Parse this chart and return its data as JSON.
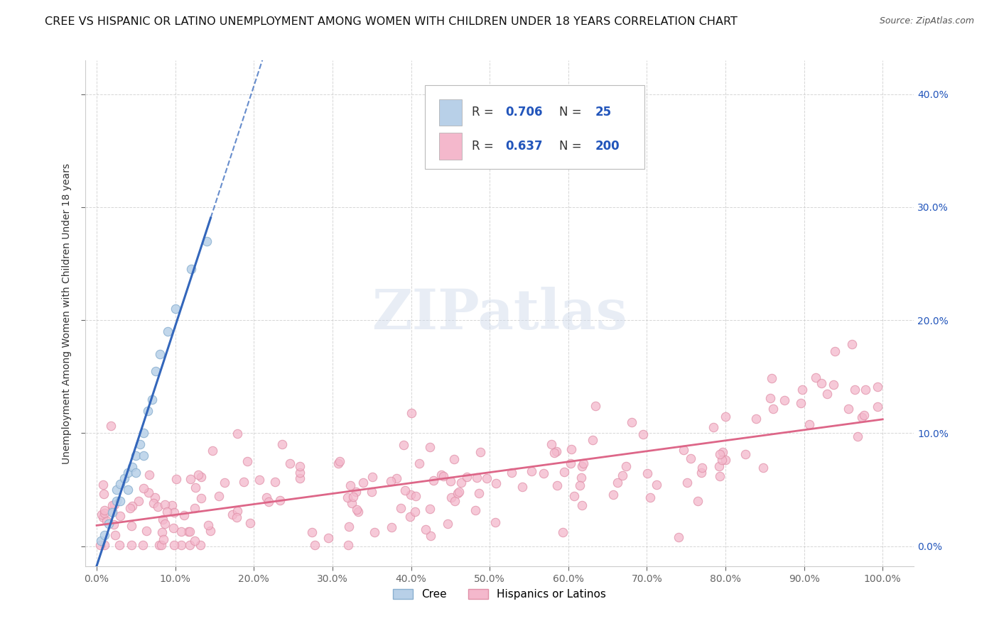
{
  "title": "CREE VS HISPANIC OR LATINO UNEMPLOYMENT AMONG WOMEN WITH CHILDREN UNDER 18 YEARS CORRELATION CHART",
  "source": "Source: ZipAtlas.com",
  "ylabel": "Unemployment Among Women with Children Under 18 years",
  "x_tick_labels": [
    "0.0%",
    "10.0%",
    "20.0%",
    "30.0%",
    "40.0%",
    "50.0%",
    "60.0%",
    "70.0%",
    "80.0%",
    "90.0%",
    "100.0%"
  ],
  "x_tick_values": [
    0.0,
    0.1,
    0.2,
    0.3,
    0.4,
    0.5,
    0.6,
    0.7,
    0.8,
    0.9,
    1.0
  ],
  "y_tick_labels": [
    "0.0%",
    "10.0%",
    "20.0%",
    "30.0%",
    "40.0%"
  ],
  "y_tick_values": [
    0.0,
    0.1,
    0.2,
    0.3,
    0.4
  ],
  "xlim": [
    -0.015,
    1.04
  ],
  "ylim": [
    -0.018,
    0.43
  ],
  "cree_color": "#b8d0e8",
  "cree_edge_color": "#8ab0d0",
  "cree_line_color": "#3366bb",
  "hispanic_color": "#f4b8cc",
  "hispanic_edge_color": "#e090a8",
  "hispanic_line_color": "#dd6688",
  "cree_R": 0.706,
  "cree_N": 25,
  "hispanic_R": 0.637,
  "hispanic_N": 200,
  "legend_R_color": "#2255bb",
  "watermark_text": "ZIPatlas",
  "legend_label_cree": "Cree",
  "legend_label_hispanic": "Hispanics or Latinos",
  "background_color": "#ffffff",
  "grid_color": "#cccccc",
  "title_fontsize": 11.5,
  "cree_scatter_x": [
    0.005,
    0.01,
    0.015,
    0.02,
    0.025,
    0.025,
    0.03,
    0.03,
    0.035,
    0.04,
    0.04,
    0.045,
    0.05,
    0.05,
    0.055,
    0.06,
    0.06,
    0.065,
    0.07,
    0.075,
    0.08,
    0.09,
    0.1,
    0.12,
    0.14
  ],
  "cree_scatter_y": [
    0.005,
    0.01,
    0.02,
    0.03,
    0.04,
    0.05,
    0.04,
    0.055,
    0.06,
    0.05,
    0.065,
    0.07,
    0.065,
    0.08,
    0.09,
    0.08,
    0.1,
    0.12,
    0.13,
    0.155,
    0.17,
    0.19,
    0.21,
    0.245,
    0.27
  ],
  "hispanic_scatter_seed": 17,
  "marker_size": 80
}
